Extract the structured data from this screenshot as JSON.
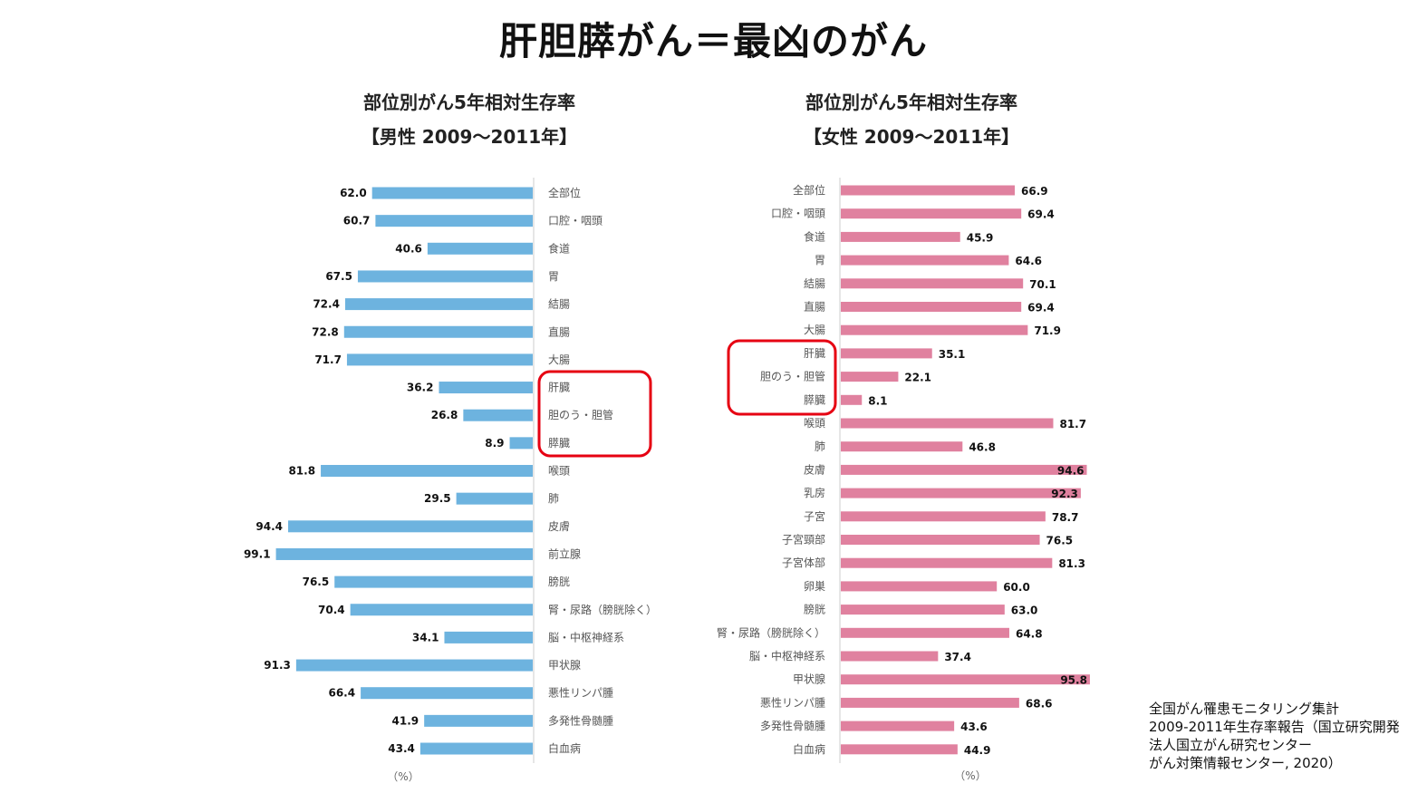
{
  "title": "肝胆膵がん＝最凶のがん",
  "source_note": "全国がん罹患モニタリング集計\n2009-2011年生存率報告（国立研究開発法人国立がん研究センター\nがん対策情報センター, 2020）",
  "colors": {
    "male_bar": "#6db3df",
    "female_bar": "#e0819f",
    "highlight": "#e60012"
  },
  "chart_data": [
    {
      "type": "bar",
      "orientation": "horizontal",
      "direction": "right-to-left",
      "title": "部位別がん5年相対生存率",
      "subtitle": "【男性 2009～2011年】",
      "unit_label": "（%）",
      "categories": [
        "全部位",
        "口腔・咽頭",
        "食道",
        "胃",
        "結腸",
        "直腸",
        "大腸",
        "肝臓",
        "胆のう・胆管",
        "膵臓",
        "喉頭",
        "肺",
        "皮膚",
        "前立腺",
        "膀胱",
        "腎・尿路（膀胱除く）",
        "脳・中枢神経系",
        "甲状腺",
        "悪性リンパ腫",
        "多発性骨髄腫",
        "白血病"
      ],
      "values": [
        62.0,
        60.7,
        40.6,
        67.5,
        72.4,
        72.8,
        71.7,
        36.2,
        26.8,
        8.9,
        81.8,
        29.5,
        94.4,
        99.1,
        76.5,
        70.4,
        34.1,
        91.3,
        66.4,
        41.9,
        43.4
      ],
      "value_labels": [
        "62.0",
        "60.7",
        "40.6",
        "67.5",
        "72.4",
        "72.8",
        "71.7",
        "36.2",
        "26.8",
        "8.9",
        "81.8",
        "29.5",
        "94.4",
        "99.1",
        "76.5",
        "70.4",
        "34.1",
        "91.3",
        "66.4",
        "41.9",
        "43.4"
      ],
      "highlighted": [
        "肝臓",
        "胆のう・胆管",
        "膵臓"
      ],
      "xlim": [
        0,
        100
      ]
    },
    {
      "type": "bar",
      "orientation": "horizontal",
      "direction": "left-to-right",
      "title": "部位別がん5年相対生存率",
      "subtitle": "【女性 2009～2011年】",
      "unit_label": "（%）",
      "categories": [
        "全部位",
        "口腔・咽頭",
        "食道",
        "胃",
        "結腸",
        "直腸",
        "大腸",
        "肝臓",
        "胆のう・胆管",
        "膵臓",
        "喉頭",
        "肺",
        "皮膚",
        "乳房",
        "子宮",
        "子宮頸部",
        "子宮体部",
        "卵巣",
        "膀胱",
        "腎・尿路（膀胱除く）",
        "脳・中枢神経系",
        "甲状腺",
        "悪性リンパ腫",
        "多発性骨髄腫",
        "白血病"
      ],
      "values": [
        66.9,
        69.4,
        45.9,
        64.6,
        70.1,
        69.4,
        71.9,
        35.1,
        22.1,
        8.1,
        81.7,
        46.8,
        94.6,
        92.3,
        78.7,
        76.5,
        81.3,
        60.0,
        63.0,
        64.8,
        37.4,
        95.8,
        68.6,
        43.6,
        44.9
      ],
      "value_labels": [
        "66.9",
        "69.4",
        "45.9",
        "64.6",
        "70.1",
        "69.4",
        "71.9",
        "35.1",
        "22.1",
        "8.1",
        "81.7",
        "46.8",
        "94.6",
        "92.3",
        "78.7",
        "76.5",
        "81.3",
        "60.0",
        "63.0",
        "64.8",
        "37.4",
        "95.8",
        "68.6",
        "43.6",
        "44.9"
      ],
      "highlighted": [
        "肝臓",
        "胆のう・胆管",
        "膵臓"
      ],
      "xlim": [
        0,
        100
      ]
    }
  ]
}
